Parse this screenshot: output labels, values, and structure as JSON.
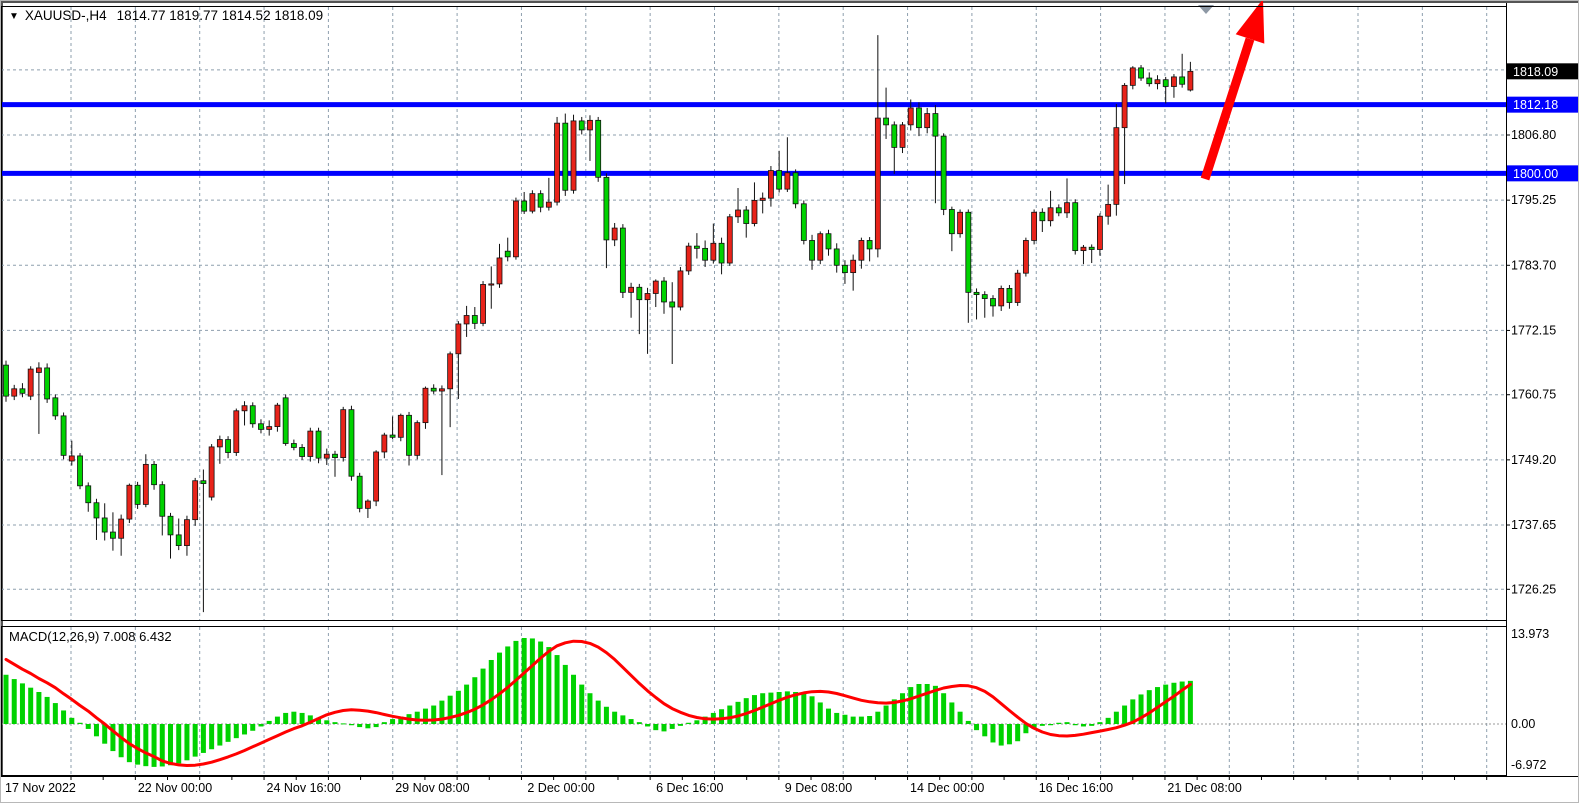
{
  "header": {
    "symbol_period": "XAUUSD-,H4",
    "ohlc_values": "1814.77 1819.77 1814.52 1818.09"
  },
  "price_axis": {
    "current_price_tag": {
      "label": "1818.09",
      "price": 1818.09,
      "bg": "#000000",
      "fg": "#ffffff"
    },
    "line_tags": [
      {
        "label": "1812.18",
        "price": 1812.18,
        "bg": "#0000ff",
        "fg": "#ffffff"
      },
      {
        "label": "1800.00",
        "price": 1800.0,
        "bg": "#0000ff",
        "fg": "#ffffff"
      }
    ],
    "plain_labels": [
      {
        "label": "1806.80",
        "price": 1806.8
      },
      {
        "label": "1795.25",
        "price": 1795.25
      },
      {
        "label": "1783.70",
        "price": 1783.7
      },
      {
        "label": "1772.15",
        "price": 1772.15
      },
      {
        "label": "1760.75",
        "price": 1760.75
      },
      {
        "label": "1749.20",
        "price": 1749.2
      },
      {
        "label": "1737.65",
        "price": 1737.65
      },
      {
        "label": "1726.25",
        "price": 1726.25
      }
    ],
    "grid_prices": [
      1818.35,
      1806.8,
      1795.25,
      1783.7,
      1772.15,
      1760.75,
      1749.2,
      1737.65,
      1726.25
    ]
  },
  "time_axis": {
    "first_label": "17 Nov 2022",
    "labels": [
      "22 Nov 00:00",
      "24 Nov 16:00",
      "29 Nov 08:00",
      "2 Dec 00:00",
      "6 Dec 16:00",
      "9 Dec 08:00",
      "14 Dec 00:00",
      "16 Dec 16:00",
      "21 Dec 08:00"
    ]
  },
  "macd": {
    "label": "MACD(12,26,9) 7.008 6.432",
    "max_label": "13.973",
    "zero_label": "0.00",
    "min_label": "-6.972",
    "main_value": 7.008,
    "signal_value": 6.432
  },
  "colors": {
    "bull_candle": "#e8231a",
    "bear_candle": "#00d200",
    "wick": "#111111",
    "grid": "#8e9fae",
    "blue_line": "#0000ff",
    "macd_bar": "#00d200",
    "signal_line": "#ff0000",
    "arrow": "#ff0000",
    "axis_text": "#000000",
    "marker": "#8d98a5"
  },
  "chart_data": {
    "type": "candlestick",
    "symbol": "XAUUSD",
    "timeframe": "H4",
    "title": "XAUUSD-,H4 1814.77 1819.77 1814.52 1818.09",
    "x_tick_labels": [
      "17 Nov 2022",
      "22 Nov 00:00",
      "24 Nov 16:00",
      "29 Nov 08:00",
      "2 Dec 00:00",
      "6 Dec 16:00",
      "9 Dec 08:00",
      "14 Dec 00:00",
      "16 Dec 16:00",
      "21 Dec 08:00"
    ],
    "y_tick_labels": [
      1818.09,
      1812.18,
      1806.8,
      1800.0,
      1795.25,
      1783.7,
      1772.15,
      1760.75,
      1749.2,
      1737.65,
      1726.25
    ],
    "price_range_visible": [
      1720.6,
      1829.5
    ],
    "horizontal_lines": [
      {
        "price": 1812.18,
        "color": "#0000ff"
      },
      {
        "price": 1800.0,
        "color": "#0000ff"
      }
    ],
    "annotations": [
      {
        "type": "arrow-up",
        "from_price": 1799.0,
        "to_price": 1829.0,
        "color": "#ff0000"
      }
    ],
    "ohlc": [
      [
        1766,
        1766.8,
        1759.5,
        1760.5
      ],
      [
        1760.5,
        1762.5,
        1759.8,
        1761.8
      ],
      [
        1761.8,
        1762.8,
        1760.3,
        1761
      ],
      [
        1760.5,
        1765.8,
        1759.8,
        1765.3
      ],
      [
        1764.7,
        1766.5,
        1753.8,
        1765.5
      ],
      [
        1765.5,
        1766.3,
        1759.3,
        1760
      ],
      [
        1760.2,
        1760.8,
        1756.3,
        1757
      ],
      [
        1757,
        1757.6,
        1749.3,
        1750
      ],
      [
        1749,
        1752.6,
        1748.2,
        1749.9
      ],
      [
        1749.9,
        1750.4,
        1744,
        1744.6
      ],
      [
        1744.6,
        1745.2,
        1740,
        1741.6
      ],
      [
        1741.6,
        1742.3,
        1735,
        1738.9
      ],
      [
        1738.9,
        1741.5,
        1734.9,
        1736.4
      ],
      [
        1736.4,
        1739.9,
        1733.1,
        1735.3
      ],
      [
        1735.3,
        1739.5,
        1732.2,
        1738.7
      ],
      [
        1738.7,
        1745,
        1738,
        1744.7
      ],
      [
        1744.7,
        1745.3,
        1740.5,
        1741.3
      ],
      [
        1741.3,
        1750.2,
        1740.8,
        1748.4
      ],
      [
        1748.4,
        1749,
        1743.9,
        1744.8
      ],
      [
        1744.8,
        1745.4,
        1735.8,
        1739.2
      ],
      [
        1739.2,
        1739.8,
        1731.7,
        1735.9
      ],
      [
        1735.9,
        1738.8,
        1733.2,
        1734
      ],
      [
        1734,
        1739.3,
        1732.2,
        1738.6
      ],
      [
        1738.6,
        1746,
        1737.5,
        1745.5
      ],
      [
        1745.5,
        1747.5,
        1722.2,
        1745
      ],
      [
        1742.6,
        1752,
        1742,
        1751.5
      ],
      [
        1751.5,
        1753.5,
        1748.5,
        1752.8
      ],
      [
        1752.8,
        1753.4,
        1749.5,
        1750.5
      ],
      [
        1750.5,
        1758.3,
        1749.9,
        1757.9
      ],
      [
        1757.9,
        1759.6,
        1755.3,
        1758.8
      ],
      [
        1758.8,
        1759.4,
        1754.9,
        1755.6
      ],
      [
        1755.6,
        1756.4,
        1753.9,
        1754.6
      ],
      [
        1754.6,
        1756.2,
        1753.5,
        1755.1
      ],
      [
        1755.1,
        1759.3,
        1754.2,
        1758.9
      ],
      [
        1760.2,
        1760.8,
        1751.7,
        1752.1
      ],
      [
        1752.1,
        1752.8,
        1750.9,
        1751.4
      ],
      [
        1751.4,
        1752,
        1749.2,
        1749.8
      ],
      [
        1749.8,
        1754.9,
        1748.9,
        1754.3
      ],
      [
        1754.3,
        1754.9,
        1748.6,
        1749.5
      ],
      [
        1749.5,
        1751.2,
        1748.3,
        1750.2
      ],
      [
        1750.2,
        1750.8,
        1746.2,
        1749.6
      ],
      [
        1749.6,
        1758.6,
        1748.9,
        1758.1
      ],
      [
        1758.1,
        1758.8,
        1745.5,
        1746.3
      ],
      [
        1746.3,
        1746.9,
        1739.9,
        1740.6
      ],
      [
        1740.6,
        1742.2,
        1738.9,
        1741.9
      ],
      [
        1741.9,
        1750.9,
        1741,
        1750.6
      ],
      [
        1750.6,
        1754,
        1749.5,
        1753.6
      ],
      [
        1753.6,
        1756.9,
        1752.9,
        1753.2
      ],
      [
        1753.2,
        1757.4,
        1752.5,
        1757.1
      ],
      [
        1757.1,
        1757.7,
        1748.2,
        1750
      ],
      [
        1750,
        1756.2,
        1749.3,
        1755.8
      ],
      [
        1755.8,
        1762.2,
        1754.7,
        1761.9
      ],
      [
        1761.9,
        1762.6,
        1760.9,
        1761.4
      ],
      [
        1761.4,
        1762.4,
        1746.5,
        1761.8
      ],
      [
        1761.8,
        1768.4,
        1755,
        1768
      ],
      [
        1768,
        1773.8,
        1760,
        1773.3
      ],
      [
        1773.3,
        1776.5,
        1771,
        1774.8
      ],
      [
        1774.8,
        1776.3,
        1772.4,
        1773.4
      ],
      [
        1773.4,
        1780.9,
        1772.9,
        1780.3
      ],
      [
        1780.3,
        1783.5,
        1776,
        1780.4
      ],
      [
        1780.4,
        1787.5,
        1779.7,
        1785
      ],
      [
        1786.2,
        1788.6,
        1784.4,
        1785.2
      ],
      [
        1785.2,
        1795.7,
        1784.7,
        1795.1
      ],
      [
        1795.1,
        1796.7,
        1792.8,
        1793.3
      ],
      [
        1793.3,
        1797,
        1792.9,
        1796.4
      ],
      [
        1796.4,
        1797,
        1793.1,
        1794
      ],
      [
        1794,
        1799.2,
        1793.4,
        1794.9
      ],
      [
        1794.9,
        1810,
        1794.3,
        1808.9
      ],
      [
        1808.9,
        1810.6,
        1796,
        1797
      ],
      [
        1797,
        1810.4,
        1796.4,
        1809.3
      ],
      [
        1809.3,
        1810,
        1806.9,
        1807.7
      ],
      [
        1807.7,
        1810.3,
        1802.2,
        1809.4
      ],
      [
        1809.4,
        1810,
        1798.5,
        1799.3
      ],
      [
        1799.3,
        1800,
        1783.2,
        1788.2
      ],
      [
        1788.2,
        1791.2,
        1787.1,
        1790.3
      ],
      [
        1790.3,
        1791,
        1777.9,
        1778.9
      ],
      [
        1778.9,
        1780.6,
        1774.4,
        1779.8
      ],
      [
        1779.8,
        1780.4,
        1771.5,
        1777.6
      ],
      [
        1777.6,
        1779.7,
        1768,
        1778.7
      ],
      [
        1778.7,
        1781.2,
        1776.3,
        1780.9
      ],
      [
        1780.9,
        1781.6,
        1775.1,
        1777.2
      ],
      [
        1777.2,
        1780.7,
        1766.2,
        1776.3
      ],
      [
        1776.3,
        1783.4,
        1775.7,
        1782.7
      ],
      [
        1782.7,
        1787.7,
        1782,
        1787.1
      ],
      [
        1787.1,
        1789.4,
        1784.9,
        1786.7
      ],
      [
        1786.7,
        1788.1,
        1783.4,
        1784.6
      ],
      [
        1784.6,
        1791.1,
        1784,
        1787.6
      ],
      [
        1787.6,
        1788.6,
        1782.1,
        1784.1
      ],
      [
        1784.1,
        1792.8,
        1783.6,
        1792.3
      ],
      [
        1792.3,
        1797.4,
        1791.2,
        1793.5
      ],
      [
        1793.5,
        1794.2,
        1788.6,
        1791.1
      ],
      [
        1791.1,
        1798.4,
        1790.6,
        1795.2
      ],
      [
        1795.2,
        1796.6,
        1792.9,
        1795.6
      ],
      [
        1795.6,
        1801.3,
        1794.1,
        1800.5
      ],
      [
        1800.5,
        1804,
        1796.6,
        1797.2
      ],
      [
        1797.2,
        1806.4,
        1796.7,
        1800.1
      ],
      [
        1800.1,
        1800.7,
        1793.8,
        1794.6
      ],
      [
        1794.6,
        1795.2,
        1787.4,
        1788.1
      ],
      [
        1788.1,
        1789.1,
        1782.9,
        1784.6
      ],
      [
        1784.6,
        1789.7,
        1783.9,
        1789.3
      ],
      [
        1789.3,
        1790,
        1785.4,
        1786.6
      ],
      [
        1786.6,
        1787.6,
        1782.4,
        1783.7
      ],
      [
        1783.7,
        1784.6,
        1780.4,
        1782.4
      ],
      [
        1782.4,
        1785.6,
        1779.2,
        1784.6
      ],
      [
        1784.6,
        1788.6,
        1783.1,
        1788.1
      ],
      [
        1788.1,
        1788.7,
        1784.4,
        1786.6
      ],
      [
        1786.6,
        1824.5,
        1785.1,
        1809.8
      ],
      [
        1809.8,
        1815.2,
        1806.1,
        1808.6
      ],
      [
        1808.6,
        1809.2,
        1799.9,
        1804.6
      ],
      [
        1804.6,
        1809.1,
        1803.6,
        1808.6
      ],
      [
        1808.6,
        1813.1,
        1807.6,
        1811.6
      ],
      [
        1811.6,
        1812.6,
        1806.6,
        1808.1
      ],
      [
        1808.1,
        1811.6,
        1807.1,
        1810.6
      ],
      [
        1810.6,
        1812.1,
        1794.7,
        1806.6
      ],
      [
        1806.6,
        1807.1,
        1792.6,
        1793.6
      ],
      [
        1793.6,
        1794.1,
        1786.2,
        1789.3
      ],
      [
        1789.3,
        1793.6,
        1788.6,
        1793.1
      ],
      [
        1793.1,
        1793.6,
        1773.5,
        1778.9
      ],
      [
        1778.9,
        1779.6,
        1774.1,
        1778.5
      ],
      [
        1778.5,
        1779.1,
        1774.4,
        1777.8
      ],
      [
        1777.8,
        1778.4,
        1774.6,
        1776.5
      ],
      [
        1776.5,
        1780.1,
        1775.6,
        1779.6
      ],
      [
        1779.6,
        1780.2,
        1776,
        1777.1
      ],
      [
        1777.1,
        1782.9,
        1776.5,
        1782.3
      ],
      [
        1782.3,
        1788.6,
        1781.7,
        1788.1
      ],
      [
        1788.1,
        1793.6,
        1787.4,
        1793.1
      ],
      [
        1793.1,
        1793.8,
        1789.6,
        1791.6
      ],
      [
        1791.6,
        1796.9,
        1790.6,
        1793.9
      ],
      [
        1793.9,
        1794.5,
        1792.4,
        1793
      ],
      [
        1793,
        1799.1,
        1792.1,
        1794.8
      ],
      [
        1794.8,
        1795.4,
        1785.6,
        1786.3
      ],
      [
        1786.3,
        1787.3,
        1783.9,
        1786.9
      ],
      [
        1786.9,
        1787.4,
        1784.1,
        1786.5
      ],
      [
        1786.5,
        1792.9,
        1785.4,
        1792.4
      ],
      [
        1792.4,
        1798,
        1790.9,
        1794.5
      ],
      [
        1794.5,
        1812.3,
        1792.5,
        1808.1
      ],
      [
        1808.1,
        1816,
        1798.1,
        1815.6
      ],
      [
        1815.6,
        1819,
        1814.9,
        1818.7
      ],
      [
        1818.7,
        1819.2,
        1816.4,
        1816.9
      ],
      [
        1816.9,
        1817.9,
        1815.4,
        1815.9
      ],
      [
        1815.9,
        1817.4,
        1814.9,
        1816.6
      ],
      [
        1816.6,
        1817.1,
        1812.4,
        1815.4
      ],
      [
        1815.4,
        1817.6,
        1813.4,
        1817.1
      ],
      [
        1817.1,
        1821.2,
        1815.2,
        1815.8
      ],
      [
        1814.77,
        1819.77,
        1814.52,
        1818.09
      ]
    ],
    "indicator": {
      "type": "macd",
      "params": [
        12,
        26,
        9
      ],
      "range": [
        -6.972,
        13.973
      ],
      "main": [
        8,
        7.3,
        6.6,
        5.9,
        5.2,
        4.4,
        3.4,
        2.2,
        1.0,
        0.2,
        -0.8,
        -2.0,
        -3.2,
        -4.4,
        -5.4,
        -6.2,
        -6.6,
        -6.85,
        -6.97,
        -6.9,
        -6.7,
        -6.4,
        -5.9,
        -5.3,
        -4.7,
        -4.1,
        -3.5,
        -2.9,
        -2.3,
        -1.7,
        -1.1,
        -0.4,
        0.5,
        1.2,
        1.8,
        2.0,
        1.8,
        1.4,
        1.0,
        0.6,
        0.3,
        0.1,
        -0.2,
        -0.5,
        -0.7,
        -0.5,
        0.3,
        0.8,
        1.2,
        1.6,
        2.0,
        2.5,
        3.0,
        3.8,
        4.6,
        5.4,
        6.4,
        7.6,
        9.0,
        10.4,
        11.6,
        12.6,
        13.5,
        13.973,
        13.9,
        13.4,
        12.5,
        11.2,
        9.6,
        8.0,
        6.4,
        5.0,
        3.8,
        2.8,
        2.0,
        1.4,
        0.8,
        0.3,
        -0.4,
        -1.0,
        -1.2,
        -0.8,
        -0.3,
        0.2,
        0.6,
        1.2,
        1.8,
        2.4,
        3.0,
        3.6,
        4.2,
        4.7,
        5.0,
        5.1,
        5.2,
        5.3,
        5.2,
        5.0,
        4.5,
        3.5,
        2.5,
        1.8,
        1.5,
        1.2,
        1.2,
        1.3,
        2.0,
        3.0,
        4.0,
        5.0,
        6.0,
        6.5,
        6.5,
        6.2,
        5.0,
        3.5,
        2.0,
        0.5,
        -1.0,
        -2.0,
        -3.0,
        -3.5,
        -3.3,
        -2.8,
        -1.5,
        -0.8,
        -0.3,
        -0.2,
        0.2,
        0.3,
        -0.2,
        -0.4,
        -0.3,
        0.3,
        1.0,
        2.0,
        3.0,
        4.0,
        4.8,
        5.5,
        6.0,
        6.4,
        6.7,
        6.9,
        7.008
      ],
      "signal": [
        10.5,
        9.7,
        8.9,
        8.2,
        7.4,
        6.7,
        5.9,
        4.9,
        4.0,
        3.0,
        2.1,
        1.0,
        0.0,
        -1.1,
        -2.2,
        -3.2,
        -4.0,
        -4.7,
        -5.3,
        -6.0,
        -6.4,
        -6.65,
        -6.75,
        -6.7,
        -6.5,
        -6.2,
        -5.8,
        -5.35,
        -4.85,
        -4.3,
        -3.7,
        -3.1,
        -2.5,
        -1.9,
        -1.3,
        -0.75,
        -0.3,
        0.3,
        0.9,
        1.5,
        1.9,
        2.2,
        2.3,
        2.25,
        2.1,
        1.85,
        1.55,
        1.25,
        1.0,
        0.8,
        0.65,
        0.6,
        0.65,
        0.8,
        1.05,
        1.4,
        1.85,
        2.4,
        3.1,
        3.95,
        4.9,
        5.95,
        7.1,
        8.3,
        9.5,
        10.7,
        11.8,
        12.7,
        13.2,
        13.45,
        13.4,
        13.1,
        12.5,
        11.6,
        10.5,
        9.2,
        7.9,
        6.6,
        5.4,
        4.3,
        3.3,
        2.5,
        1.9,
        1.4,
        1.05,
        0.85,
        0.8,
        0.85,
        1.0,
        1.3,
        1.7,
        2.2,
        2.75,
        3.3,
        3.85,
        4.35,
        4.75,
        5.05,
        5.25,
        5.3,
        5.2,
        4.95,
        4.6,
        4.2,
        3.85,
        3.6,
        3.45,
        3.4,
        3.5,
        3.75,
        4.1,
        4.55,
        5.0,
        5.45,
        5.85,
        6.1,
        6.25,
        6.2,
        5.9,
        5.3,
        4.4,
        3.3,
        2.2,
        1.1,
        0.1,
        -0.7,
        -1.3,
        -1.7,
        -1.9,
        -1.95,
        -1.85,
        -1.65,
        -1.4,
        -1.15,
        -0.9,
        -0.6,
        -0.2,
        0.3,
        1.0,
        1.8,
        2.7,
        3.6,
        4.5,
        5.5,
        6.43
      ]
    }
  }
}
